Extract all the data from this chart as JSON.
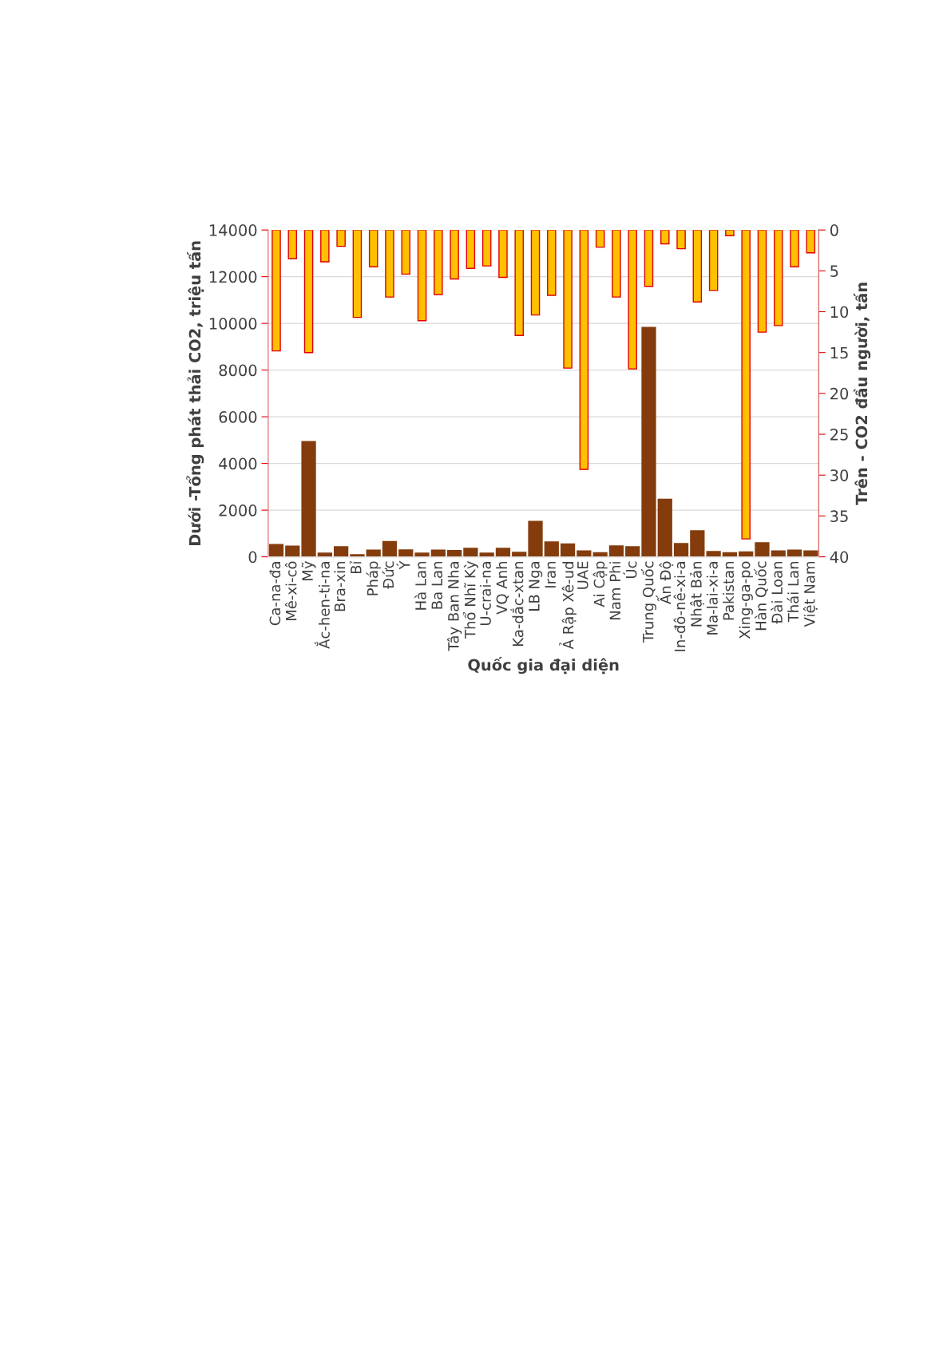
{
  "chart_data": {
    "type": "bar",
    "xlabel": "Quốc gia đại diện",
    "ylabel": "Dưới -Tổng phát thải CO2, triệu tấn",
    "y2label": "Trên - CO2 đầu người, tấn",
    "categories": [
      "Ca-na-đa",
      "Mê-xi-cô",
      "Mỹ",
      "Ắc-hen-ti-na",
      "Bra-xin",
      "Bỉ",
      "Pháp",
      "Đức",
      "Ý",
      "Hà Lan",
      "Ba Lan",
      "Tây Ban Nha",
      "Thổ Nhĩ Kỳ",
      "U-crai-na",
      "VQ Anh",
      "Ka-dắc-xtan",
      "LB Nga",
      "Iran",
      "Ả Rập Xê-ud",
      "UAE",
      "Ai Cập",
      "Nam Phi",
      "Úc",
      "Trung Quốc",
      "Ấn Độ",
      "In-đô-nê-xi-a",
      "Nhật Bản",
      "Ma-lai-xi-a",
      "Pakistan",
      "Xing-ga-po",
      "Hàn Quốc",
      "Đài Loan",
      "Thái Lan",
      "Việt Nam"
    ],
    "series": [
      {
        "color": "#843c0c",
        "values": [
          550,
          480,
          4960,
          180,
          460,
          110,
          310,
          680,
          320,
          180,
          310,
          290,
          390,
          180,
          390,
          220,
          1540,
          660,
          580,
          280,
          200,
          490,
          460,
          9850,
          2490,
          590,
          1140,
          250,
          200,
          230,
          630,
          280,
          310,
          280
        ]
      },
      {
        "color": "#ffc000",
        "axis": "y2",
        "values": [
          14.8,
          3.5,
          15.0,
          3.9,
          2.0,
          10.7,
          4.5,
          8.2,
          5.4,
          11.1,
          7.9,
          6.0,
          4.7,
          4.4,
          5.8,
          12.9,
          10.4,
          8.0,
          16.9,
          29.3,
          2.1,
          8.2,
          17.0,
          6.9,
          1.7,
          2.3,
          8.8,
          7.4,
          0.7,
          37.8,
          12.5,
          11.7,
          4.5,
          2.8
        ]
      }
    ],
    "ylim": [
      0,
      14000
    ],
    "yticks": [
      0,
      2000,
      4000,
      6000,
      8000,
      10000,
      12000,
      14000
    ],
    "y2lim": [
      40,
      0
    ],
    "y2ticks": [
      0,
      5,
      10,
      15,
      20,
      25,
      30,
      35,
      40
    ],
    "grid": "y",
    "legend": false
  }
}
